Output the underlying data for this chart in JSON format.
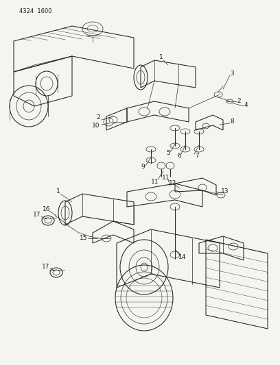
{
  "title": "4324 1600",
  "bg": "#f5f5f0",
  "lc": "#2a2a2a",
  "tc": "#1a1a1a",
  "fig_w": 4.08,
  "fig_h": 5.33,
  "dpi": 100,
  "lw_main": 0.8,
  "lw_thin": 0.5,
  "lw_leader": 0.5,
  "label_fs": 6.5,
  "title_fs": 6.0
}
